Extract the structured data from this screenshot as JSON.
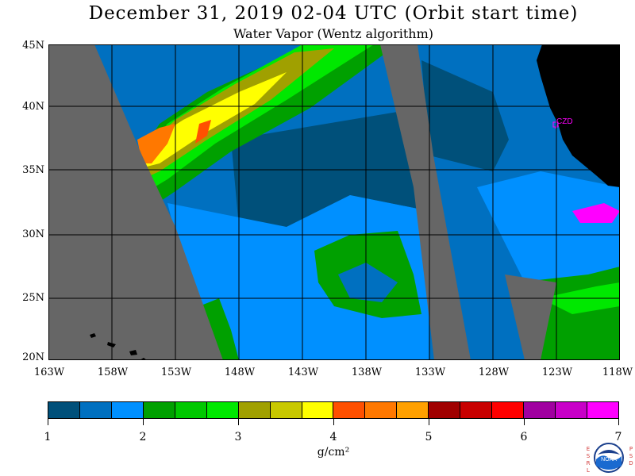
{
  "header": {
    "title": "December 31, 2019  02-04 UTC  (Orbit start time)",
    "subtitle": "Water Vapor (Wentz algorithm)"
  },
  "map": {
    "lat_labels": [
      "45N",
      "40N",
      "35N",
      "30N",
      "25N",
      "20N"
    ],
    "lon_labels": [
      "163W",
      "158W",
      "153W",
      "148W",
      "143W",
      "138W",
      "133W",
      "128W",
      "123W",
      "118W"
    ],
    "station_label": "CZD",
    "colors": {
      "no_data": "#666666",
      "land": "#000000",
      "grid": "#000000",
      "station": "#ff00ff"
    }
  },
  "colorbar": {
    "colors": [
      "#00507a",
      "#0070c0",
      "#0090ff",
      "#00a000",
      "#00c800",
      "#00e800",
      "#a0a000",
      "#c8c800",
      "#ffff00",
      "#ff5000",
      "#ff7800",
      "#ffa000",
      "#a00000",
      "#c80000",
      "#ff0000",
      "#a000a0",
      "#c800c8",
      "#ff00ff"
    ],
    "tick_labels": [
      "1",
      "2",
      "3",
      "4",
      "5",
      "6",
      "7"
    ],
    "unit": "g/cm²"
  },
  "logo": {
    "left_letters": [
      "E",
      "S",
      "R",
      "L"
    ],
    "right_letters": [
      "P",
      "S",
      "D"
    ],
    "center_text": "NOAA"
  }
}
